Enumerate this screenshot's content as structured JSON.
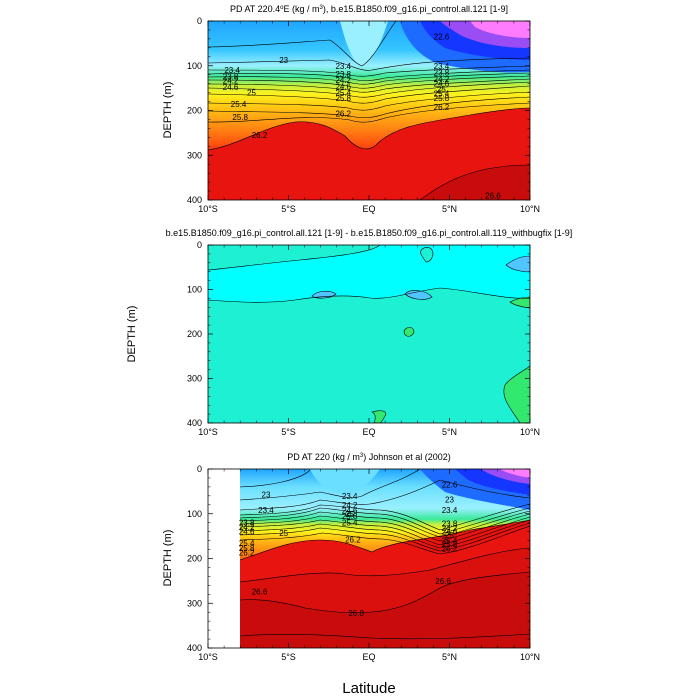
{
  "colors": {
    "ramp": [
      "#ff7bff",
      "#d36cff",
      "#9b4df5",
      "#3b1ed8",
      "#1536ff",
      "#1e6cff",
      "#1fa5ff",
      "#35c6ff",
      "#6bdfff",
      "#9af0ff",
      "#3ef2c8",
      "#3aea9a",
      "#7ef05a",
      "#c7f03c",
      "#fff21e",
      "#ffcc15",
      "#ffa014",
      "#ff7a12",
      "#ff4f10",
      "#f42a10",
      "#e8140f",
      "#d9100d",
      "#c80c0b"
    ],
    "diff_cyan": "#00ffff",
    "diff_aqua": "#1ef0d4",
    "diff_green": "#33e86e",
    "diff_blue": "#4fc6ff"
  },
  "x_label": "Latitude",
  "chart_data": [
    {
      "type": "contour",
      "title_pre": "PD AT 220.4",
      "title_deg": "o",
      "title_mid": "E (kg / m",
      "title_sup": "3",
      "title_post": "), b.e15.B1850.f09_g16.pi_control.all.121 [1-9]",
      "ylabel": "DEPTH (m)",
      "xlim": [
        -10,
        10
      ],
      "ylim": [
        0,
        400
      ],
      "x_ticks": [
        {
          "v": -10,
          "label": "10°S"
        },
        {
          "v": -5,
          "label": "5°S"
        },
        {
          "v": 0,
          "label": "EQ"
        },
        {
          "v": 5,
          "label": "5°N"
        },
        {
          "v": 10,
          "label": "10°N"
        }
      ],
      "y_ticks": [
        0,
        100,
        200,
        300,
        400
      ],
      "contour_labels": [
        {
          "lat": -5.3,
          "depth": 87,
          "text": "23"
        },
        {
          "lat": -8.5,
          "depth": 110,
          "text": "23.4"
        },
        {
          "lat": -8.6,
          "depth": 124,
          "text": "23.8"
        },
        {
          "lat": -8.6,
          "depth": 133,
          "text": "24.2"
        },
        {
          "lat": -8.6,
          "depth": 148,
          "text": "24.6"
        },
        {
          "lat": -7.3,
          "depth": 160,
          "text": "25"
        },
        {
          "lat": -8.1,
          "depth": 185,
          "text": "25.4"
        },
        {
          "lat": -8.0,
          "depth": 215,
          "text": "25.8"
        },
        {
          "lat": -6.8,
          "depth": 255,
          "text": "26.2"
        },
        {
          "lat": -1.6,
          "depth": 100,
          "text": "23.4"
        },
        {
          "lat": -1.6,
          "depth": 118,
          "text": "23.8"
        },
        {
          "lat": -1.6,
          "depth": 132,
          "text": "24.2"
        },
        {
          "lat": -1.6,
          "depth": 146,
          "text": "24.6"
        },
        {
          "lat": -1.6,
          "depth": 160,
          "text": "25.4"
        },
        {
          "lat": -1.6,
          "depth": 172,
          "text": "25.8"
        },
        {
          "lat": -1.6,
          "depth": 207,
          "text": "26.2"
        },
        {
          "lat": 4.5,
          "depth": 35,
          "text": "22.6"
        },
        {
          "lat": 4.5,
          "depth": 100,
          "text": "23.4"
        },
        {
          "lat": 4.5,
          "depth": 115,
          "text": "23.8"
        },
        {
          "lat": 4.5,
          "depth": 130,
          "text": "24.2"
        },
        {
          "lat": 4.5,
          "depth": 140,
          "text": "24.6"
        },
        {
          "lat": 4.5,
          "depth": 152,
          "text": "25"
        },
        {
          "lat": 4.5,
          "depth": 162,
          "text": "25.4"
        },
        {
          "lat": 4.5,
          "depth": 172,
          "text": "25.8"
        },
        {
          "lat": 4.5,
          "depth": 192,
          "text": "26.2"
        },
        {
          "lat": 7.7,
          "depth": 390,
          "text": "26.6"
        }
      ]
    },
    {
      "type": "contour",
      "title": "b.e15.B1850.f09_g16.pi_control.all.121 [1-9] - b.e15.B1850.f09_g16.pi_control.all.119_withbugfix [1-9]",
      "ylabel": "DEPTH (m)",
      "xlim": [
        -10,
        10
      ],
      "ylim": [
        0,
        400
      ],
      "x_ticks": [
        {
          "v": -10,
          "label": "10°S"
        },
        {
          "v": -5,
          "label": "5°S"
        },
        {
          "v": 0,
          "label": "EQ"
        },
        {
          "v": 5,
          "label": "5°N"
        },
        {
          "v": 10,
          "label": "10°N"
        }
      ],
      "y_ticks": [
        0,
        100,
        200,
        300,
        400
      ]
    },
    {
      "type": "contour",
      "title_pre": "PD AT 220 (kg / m",
      "title_sup": "3",
      "title_post": ") Johnson et al (2002)",
      "ylabel": "DEPTH (m)",
      "xlim": [
        -10,
        10
      ],
      "ylim": [
        0,
        400
      ],
      "data_extent_lat": [
        -8,
        10
      ],
      "x_ticks": [
        {
          "v": -10,
          "label": "10°S"
        },
        {
          "v": -5,
          "label": "5°S"
        },
        {
          "v": 0,
          "label": "EQ"
        },
        {
          "v": 5,
          "label": "5°N"
        },
        {
          "v": 10,
          "label": "10°N"
        }
      ],
      "y_ticks": [
        0,
        100,
        200,
        300,
        400
      ],
      "contour_labels": [
        {
          "lat": -6.4,
          "depth": 57,
          "text": "23"
        },
        {
          "lat": -6.4,
          "depth": 92,
          "text": "23.4"
        },
        {
          "lat": -7.6,
          "depth": 120,
          "text": "23.8"
        },
        {
          "lat": -7.6,
          "depth": 130,
          "text": "24.2"
        },
        {
          "lat": -7.6,
          "depth": 140,
          "text": "24.6"
        },
        {
          "lat": -5.3,
          "depth": 143,
          "text": "25"
        },
        {
          "lat": -7.6,
          "depth": 165,
          "text": "25.4"
        },
        {
          "lat": -7.6,
          "depth": 177,
          "text": "25.8"
        },
        {
          "lat": -7.6,
          "depth": 187,
          "text": "26.2"
        },
        {
          "lat": -1.2,
          "depth": 105,
          "text": "25.8"
        },
        {
          "lat": -1.2,
          "depth": 60,
          "text": "23.4"
        },
        {
          "lat": -1.2,
          "depth": 80,
          "text": "24.2"
        },
        {
          "lat": -1.2,
          "depth": 93,
          "text": "24.6"
        },
        {
          "lat": -1.2,
          "depth": 100,
          "text": "25"
        },
        {
          "lat": -1.2,
          "depth": 120,
          "text": "25.4"
        },
        {
          "lat": -1.0,
          "depth": 157,
          "text": "26.2"
        },
        {
          "lat": 5.0,
          "depth": 35,
          "text": "22.6"
        },
        {
          "lat": 5.0,
          "depth": 68,
          "text": "23"
        },
        {
          "lat": 5.0,
          "depth": 92,
          "text": "23.4"
        },
        {
          "lat": 5.0,
          "depth": 122,
          "text": "23.8"
        },
        {
          "lat": 5.0,
          "depth": 132,
          "text": "24.2"
        },
        {
          "lat": 5.0,
          "depth": 140,
          "text": "24.6"
        },
        {
          "lat": 5.0,
          "depth": 148,
          "text": "25"
        },
        {
          "lat": 5.0,
          "depth": 160,
          "text": "25.4"
        },
        {
          "lat": 5.0,
          "depth": 168,
          "text": "25.8"
        },
        {
          "lat": 5.0,
          "depth": 178,
          "text": "26.2"
        },
        {
          "lat": 4.6,
          "depth": 250,
          "text": "26.6"
        },
        {
          "lat": -6.8,
          "depth": 274,
          "text": "26.6"
        },
        {
          "lat": -0.8,
          "depth": 322,
          "text": "26.8"
        }
      ]
    }
  ]
}
